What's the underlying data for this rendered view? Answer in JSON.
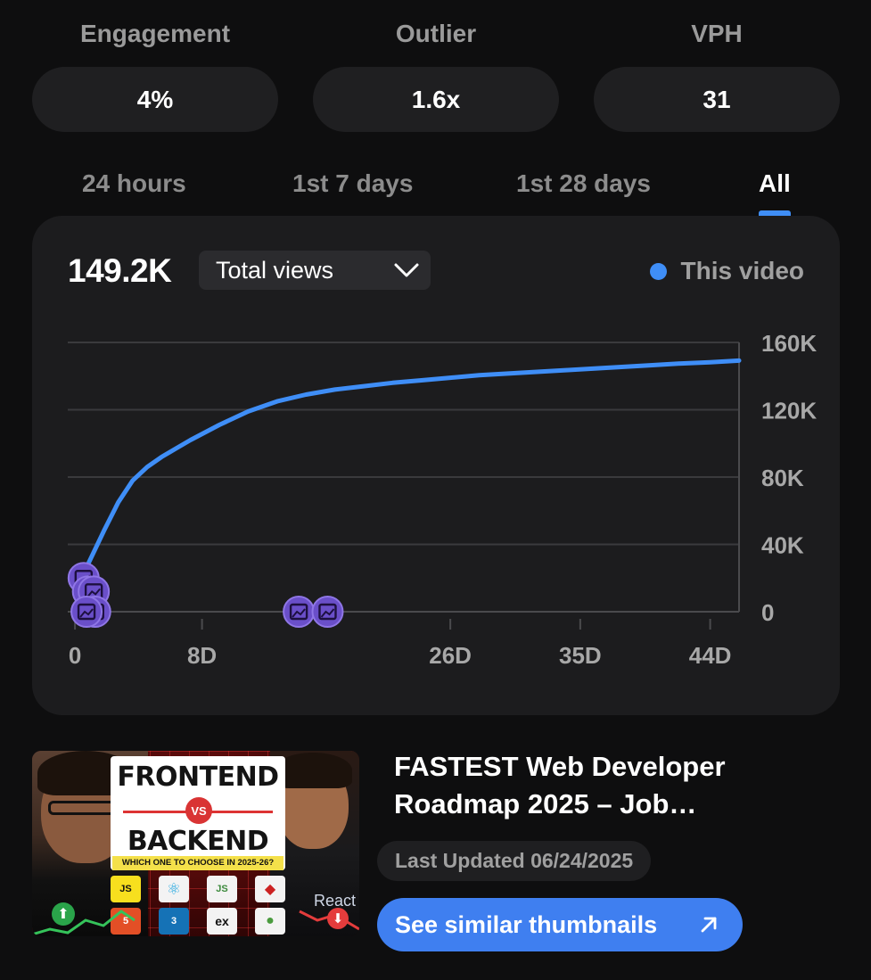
{
  "metrics": [
    {
      "label": "Engagement",
      "value": "4%"
    },
    {
      "label": "Outlier",
      "value": "1.6x"
    },
    {
      "label": "VPH",
      "value": "31"
    }
  ],
  "tabs": [
    {
      "label": "24 hours",
      "active": false
    },
    {
      "label": "1st 7 days",
      "active": false
    },
    {
      "label": "1st 28 days",
      "active": false
    },
    {
      "label": "All",
      "active": true
    }
  ],
  "chart_header": {
    "total": "149.2K",
    "metric_select": "Total views",
    "legend_label": "This video"
  },
  "colors": {
    "accent": "#3f8ef7",
    "marker": "#6a4fc9",
    "card": "#1c1c1e",
    "button": "#3f7ff0"
  },
  "chart_data": {
    "type": "line",
    "series": [
      {
        "name": "This video",
        "x": [
          0.7,
          1,
          2,
          3,
          4,
          5,
          6,
          7,
          8,
          10,
          12,
          14,
          16,
          18,
          20,
          22,
          24,
          26,
          28,
          30,
          32,
          34,
          36,
          38,
          40,
          42,
          44,
          46
        ],
        "y": [
          24000,
          30000,
          48000,
          65000,
          78000,
          86000,
          92000,
          97000,
          102000,
          111000,
          119000,
          125000,
          129000,
          132000,
          134000,
          136000,
          137500,
          139000,
          140500,
          141500,
          142500,
          143500,
          144500,
          145500,
          146500,
          147500,
          148200,
          149200
        ]
      }
    ],
    "markers_x": [
      0.6,
      0.9,
      1.3,
      1.4,
      0.8,
      15.5,
      17.5
    ],
    "markers_y": [
      20000,
      12000,
      12000,
      0,
      0,
      0,
      0
    ],
    "marker_icon": "image-icon",
    "xlim": [
      -0.5,
      46
    ],
    "ylim": [
      0,
      160000
    ],
    "x_ticks": [
      "0",
      "8D",
      "26D",
      "35D",
      "44D"
    ],
    "x_tick_values": [
      0,
      8.8,
      26,
      35,
      44
    ],
    "y_ticks": [
      "0",
      "40K",
      "80K",
      "120K",
      "160K"
    ],
    "y_tick_values": [
      0,
      40000,
      80000,
      120000,
      160000
    ],
    "grid": true,
    "legend": "top-right"
  },
  "video": {
    "title": "FASTEST Web Developer Roadmap 2025 – Job…",
    "last_updated": "Last Updated 06/24/2025",
    "similar_button": "See similar thumbnails",
    "thumbnail": {
      "headline_top": "FRONTEND",
      "vs": "VS",
      "headline_bottom": "BACKEND",
      "subtitle": "WHICH ONE TO CHOOSE IN 2025-26?",
      "react_label": "React",
      "logos": [
        "JS",
        "⚛",
        "JS",
        "◆",
        "5",
        "3",
        "ex",
        "●"
      ]
    }
  }
}
